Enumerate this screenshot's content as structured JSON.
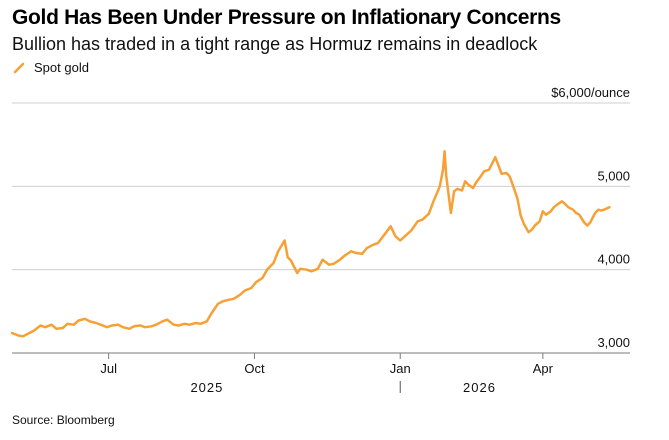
{
  "header": {
    "title": "Gold Has Been Under Pressure on Inflationary Concerns",
    "subtitle": "Bullion has traded in a tight range as Hormuz remains in deadlock"
  },
  "footer": {
    "source": "Source: Bloomberg"
  },
  "colors": {
    "series": "#f7a035",
    "grid": "#cfcfcf",
    "axis": "#7a7a7a"
  },
  "chart_data": {
    "type": "line",
    "title": "Gold Has Been Under Pressure on Inflationary Concerns",
    "subtitle": "Bullion has traded in a tight range as Hormuz remains in deadlock",
    "xlabel": "",
    "ylabel": "",
    "y_unit_label": "$6,000/ounce",
    "ylim": [
      3000,
      6000
    ],
    "y_ticks": [
      {
        "value": 3000,
        "label": "3,000"
      },
      {
        "value": 4000,
        "label": "4,000"
      },
      {
        "value": 5000,
        "label": "5,000"
      }
    ],
    "x_range": [
      "2025-05-01",
      "2026-05-26"
    ],
    "x_ticks": [
      {
        "date": "2025-07-01",
        "label": "Jul"
      },
      {
        "date": "2025-10-01",
        "label": "Oct"
      },
      {
        "date": "2026-01-01",
        "label": "Jan"
      },
      {
        "date": "2026-04-01",
        "label": "Apr"
      }
    ],
    "year_labels": [
      {
        "label": "2025",
        "at": "2025-09-01"
      },
      {
        "label": "2026",
        "at": "2026-02-20"
      }
    ],
    "year_divider": "2026-01-01",
    "grid": true,
    "legend": "top-left",
    "series": [
      {
        "name": "Spot gold",
        "color": "#f7a035",
        "points": [
          [
            "2025-05-01",
            3240
          ],
          [
            "2025-05-05",
            3210
          ],
          [
            "2025-05-08",
            3200
          ],
          [
            "2025-05-12",
            3240
          ],
          [
            "2025-05-15",
            3270
          ],
          [
            "2025-05-19",
            3330
          ],
          [
            "2025-05-22",
            3310
          ],
          [
            "2025-05-26",
            3340
          ],
          [
            "2025-05-29",
            3290
          ],
          [
            "2025-06-02",
            3300
          ],
          [
            "2025-06-05",
            3350
          ],
          [
            "2025-06-09",
            3340
          ],
          [
            "2025-06-12",
            3390
          ],
          [
            "2025-06-16",
            3410
          ],
          [
            "2025-06-19",
            3380
          ],
          [
            "2025-06-23",
            3360
          ],
          [
            "2025-06-26",
            3340
          ],
          [
            "2025-06-30",
            3310
          ],
          [
            "2025-07-03",
            3330
          ],
          [
            "2025-07-07",
            3340
          ],
          [
            "2025-07-10",
            3310
          ],
          [
            "2025-07-14",
            3290
          ],
          [
            "2025-07-17",
            3320
          ],
          [
            "2025-07-21",
            3330
          ],
          [
            "2025-07-24",
            3310
          ],
          [
            "2025-07-28",
            3320
          ],
          [
            "2025-07-31",
            3340
          ],
          [
            "2025-08-04",
            3380
          ],
          [
            "2025-08-07",
            3400
          ],
          [
            "2025-08-11",
            3340
          ],
          [
            "2025-08-14",
            3330
          ],
          [
            "2025-08-18",
            3350
          ],
          [
            "2025-08-21",
            3340
          ],
          [
            "2025-08-25",
            3360
          ],
          [
            "2025-08-28",
            3350
          ],
          [
            "2025-09-01",
            3380
          ],
          [
            "2025-09-04",
            3480
          ],
          [
            "2025-09-08",
            3590
          ],
          [
            "2025-09-11",
            3620
          ],
          [
            "2025-09-15",
            3640
          ],
          [
            "2025-09-18",
            3650
          ],
          [
            "2025-09-22",
            3700
          ],
          [
            "2025-09-25",
            3750
          ],
          [
            "2025-09-29",
            3780
          ],
          [
            "2025-10-02",
            3850
          ],
          [
            "2025-10-06",
            3900
          ],
          [
            "2025-10-09",
            4000
          ],
          [
            "2025-10-13",
            4080
          ],
          [
            "2025-10-16",
            4220
          ],
          [
            "2025-10-20",
            4350
          ],
          [
            "2025-10-22",
            4150
          ],
          [
            "2025-10-24",
            4110
          ],
          [
            "2025-10-28",
            3960
          ],
          [
            "2025-10-30",
            4010
          ],
          [
            "2025-11-03",
            4000
          ],
          [
            "2025-11-06",
            3980
          ],
          [
            "2025-11-10",
            4010
          ],
          [
            "2025-11-13",
            4120
          ],
          [
            "2025-11-17",
            4060
          ],
          [
            "2025-11-20",
            4070
          ],
          [
            "2025-11-24",
            4120
          ],
          [
            "2025-11-27",
            4170
          ],
          [
            "2025-12-01",
            4220
          ],
          [
            "2025-12-04",
            4200
          ],
          [
            "2025-12-08",
            4190
          ],
          [
            "2025-12-11",
            4260
          ],
          [
            "2025-12-15",
            4300
          ],
          [
            "2025-12-18",
            4320
          ],
          [
            "2025-12-22",
            4420
          ],
          [
            "2025-12-26",
            4520
          ],
          [
            "2025-12-29",
            4400
          ],
          [
            "2026-01-01",
            4350
          ],
          [
            "2026-01-05",
            4420
          ],
          [
            "2026-01-08",
            4470
          ],
          [
            "2026-01-12",
            4580
          ],
          [
            "2026-01-15",
            4600
          ],
          [
            "2026-01-19",
            4670
          ],
          [
            "2026-01-22",
            4820
          ],
          [
            "2026-01-26",
            5000
          ],
          [
            "2026-01-28",
            5200
          ],
          [
            "2026-01-29",
            5420
          ],
          [
            "2026-01-30",
            5130
          ],
          [
            "2026-02-02",
            4680
          ],
          [
            "2026-02-04",
            4940
          ],
          [
            "2026-02-06",
            4970
          ],
          [
            "2026-02-09",
            4950
          ],
          [
            "2026-02-11",
            5060
          ],
          [
            "2026-02-13",
            5020
          ],
          [
            "2026-02-16",
            4980
          ],
          [
            "2026-02-18",
            5050
          ],
          [
            "2026-02-20",
            5100
          ],
          [
            "2026-02-23",
            5180
          ],
          [
            "2026-02-26",
            5200
          ],
          [
            "2026-03-02",
            5350
          ],
          [
            "2026-03-04",
            5250
          ],
          [
            "2026-03-06",
            5150
          ],
          [
            "2026-03-09",
            5160
          ],
          [
            "2026-03-11",
            5120
          ],
          [
            "2026-03-13",
            5020
          ],
          [
            "2026-03-16",
            4850
          ],
          [
            "2026-03-18",
            4650
          ],
          [
            "2026-03-20",
            4550
          ],
          [
            "2026-03-23",
            4450
          ],
          [
            "2026-03-25",
            4480
          ],
          [
            "2026-03-27",
            4530
          ],
          [
            "2026-03-30",
            4580
          ],
          [
            "2026-04-01",
            4700
          ],
          [
            "2026-04-03",
            4660
          ],
          [
            "2026-04-06",
            4700
          ],
          [
            "2026-04-08",
            4750
          ],
          [
            "2026-04-10",
            4780
          ],
          [
            "2026-04-13",
            4820
          ],
          [
            "2026-04-15",
            4790
          ],
          [
            "2026-04-17",
            4750
          ],
          [
            "2026-04-20",
            4720
          ],
          [
            "2026-04-22",
            4680
          ],
          [
            "2026-04-24",
            4660
          ],
          [
            "2026-04-27",
            4570
          ],
          [
            "2026-04-29",
            4530
          ],
          [
            "2026-05-01",
            4570
          ],
          [
            "2026-05-04",
            4680
          ],
          [
            "2026-05-06",
            4720
          ],
          [
            "2026-05-08",
            4710
          ],
          [
            "2026-05-11",
            4730
          ],
          [
            "2026-05-13",
            4750
          ]
        ]
      }
    ]
  }
}
